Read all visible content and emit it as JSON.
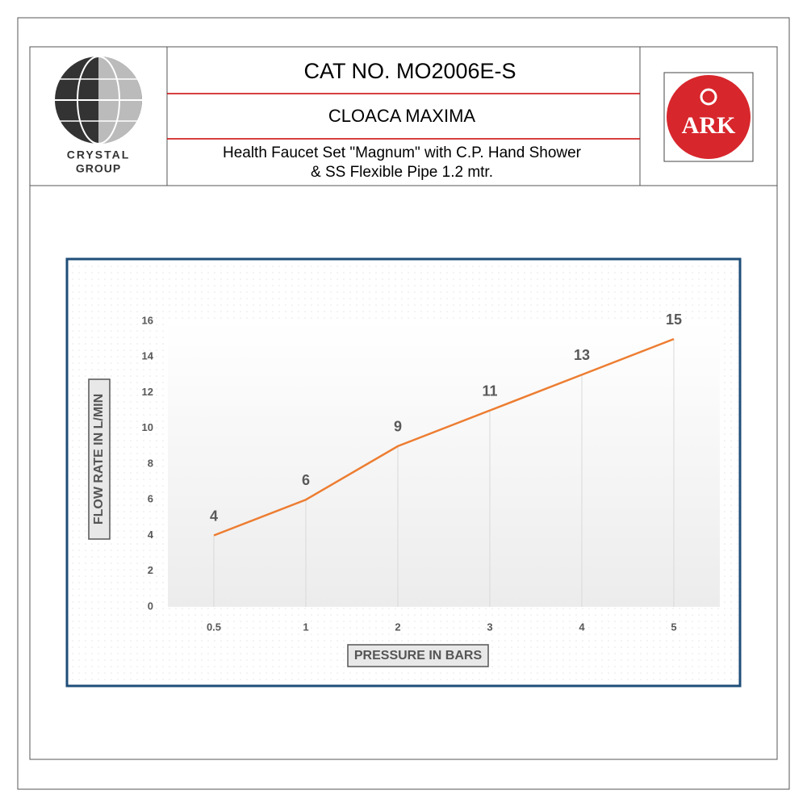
{
  "header": {
    "cat_no": "CAT NO. MO2006E-S",
    "brand": "CLOACA MAXIMA",
    "description": [
      "Health Faucet Set \"Magnum\" with  C.P. Hand Shower",
      "& SS Flexible Pipe 1.2 mtr."
    ],
    "logo_left": [
      "CRYSTAL",
      "GROUP"
    ],
    "logo_right": "ARK"
  },
  "chart_data": {
    "type": "line",
    "x_label": "PRESSURE IN BARS",
    "y_label": "FLOW RATE  IN L/MIN",
    "categories": [
      "0.5",
      "1",
      "2",
      "3",
      "4",
      "5"
    ],
    "values": [
      4,
      6,
      9,
      11,
      13,
      15
    ],
    "color": "#ed7d31",
    "ylim": [
      0,
      16
    ],
    "yticks": [
      0,
      2,
      4,
      6,
      8,
      10,
      12,
      14,
      16
    ]
  }
}
